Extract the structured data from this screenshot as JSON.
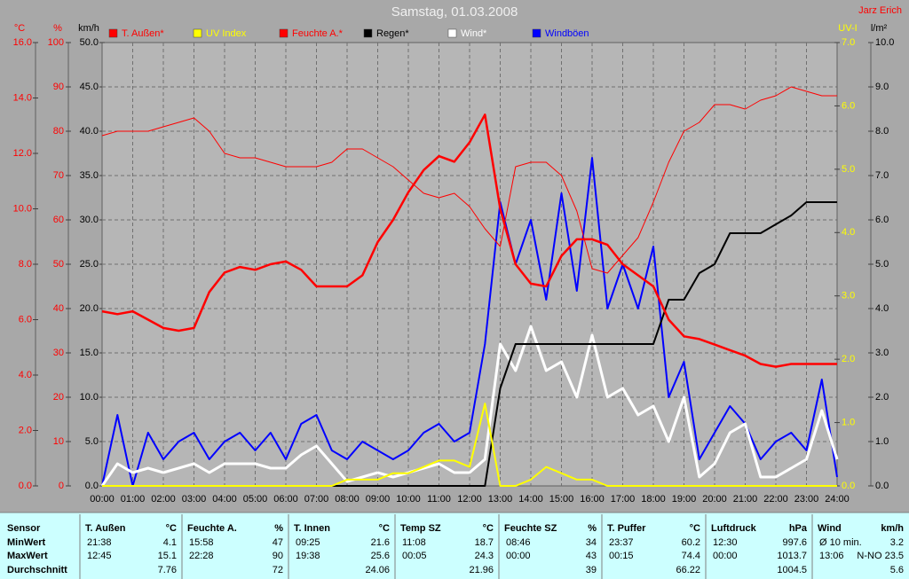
{
  "chart_data": {
    "type": "line",
    "title": "Samstag, 01.03.2008",
    "author": "Jarz Erich",
    "grid": true,
    "x": [
      0,
      0.5,
      1,
      1.5,
      2,
      2.5,
      3,
      3.5,
      4,
      4.5,
      5,
      5.5,
      6,
      6.5,
      7,
      7.5,
      8,
      8.5,
      9,
      9.5,
      10,
      10.5,
      11,
      11.5,
      12,
      12.5,
      13,
      13.5,
      14,
      14.5,
      15,
      15.5,
      16,
      16.5,
      17,
      17.5,
      18,
      18.5,
      19,
      19.5,
      20,
      20.5,
      21,
      21.5,
      22,
      22.5,
      23,
      23.5,
      24
    ],
    "xlim": [
      0,
      24
    ],
    "xticks": [
      {
        "value": 0,
        "label": "00:00"
      },
      {
        "value": 1,
        "label": "01:00"
      },
      {
        "value": 2,
        "label": "02:00"
      },
      {
        "value": 3,
        "label": "03:00"
      },
      {
        "value": 4,
        "label": "04:00"
      },
      {
        "value": 5,
        "label": "05:00"
      },
      {
        "value": 6,
        "label": "06:00"
      },
      {
        "value": 7,
        "label": "07:00"
      },
      {
        "value": 8,
        "label": "08:00"
      },
      {
        "value": 9,
        "label": "09:00"
      },
      {
        "value": 10,
        "label": "10:00"
      },
      {
        "value": 11,
        "label": "11:00"
      },
      {
        "value": 12,
        "label": "12:00"
      },
      {
        "value": 13,
        "label": "13:00"
      },
      {
        "value": 14,
        "label": "14:00"
      },
      {
        "value": 15,
        "label": "15:00"
      },
      {
        "value": 16,
        "label": "16:00"
      },
      {
        "value": 17,
        "label": "17:00"
      },
      {
        "value": 18,
        "label": "18:00"
      },
      {
        "value": 19,
        "label": "19:00"
      },
      {
        "value": 20,
        "label": "20:00"
      },
      {
        "value": 21,
        "label": "21:00"
      },
      {
        "value": 22,
        "label": "22:00"
      },
      {
        "value": 23,
        "label": "23:00"
      },
      {
        "value": 24,
        "label": "24:00"
      }
    ],
    "axes": [
      {
        "label": "°C",
        "color": "#ff0000",
        "ylim": [
          0,
          16
        ],
        "yticks": [
          {
            "value": 0,
            "label": "0.0"
          },
          {
            "value": 2,
            "label": "2.0"
          },
          {
            "value": 4,
            "label": "4.0"
          },
          {
            "value": 6,
            "label": "6.0"
          },
          {
            "value": 8,
            "label": "8.0"
          },
          {
            "value": 10,
            "label": "10.0"
          },
          {
            "value": 12,
            "label": "12.0"
          },
          {
            "value": 14,
            "label": "14.0"
          },
          {
            "value": 16,
            "label": "16.0"
          }
        ]
      },
      {
        "label": "%",
        "color": "#ff0000",
        "ylim": [
          0,
          100
        ],
        "yticks": [
          0,
          10,
          20,
          30,
          40,
          50,
          60,
          70,
          80,
          90,
          100
        ]
      },
      {
        "label": "km/h",
        "color": "#000000",
        "ylim": [
          0,
          50
        ],
        "yticks": [
          {
            "value": 0,
            "label": "0.0"
          },
          {
            "value": 5,
            "label": "5.0"
          },
          {
            "value": 10,
            "label": "10.0"
          },
          {
            "value": 15,
            "label": "15.0"
          },
          {
            "value": 20,
            "label": "20.0"
          },
          {
            "value": 25,
            "label": "25.0"
          },
          {
            "value": 30,
            "label": "30.0"
          },
          {
            "value": 35,
            "label": "35.0"
          },
          {
            "value": 40,
            "label": "40.0"
          },
          {
            "value": 45,
            "label": "45.0"
          },
          {
            "value": 50,
            "label": "50.0"
          }
        ]
      },
      {
        "label": "UV-I",
        "color": "#ffff00",
        "ylim": [
          0,
          7
        ],
        "yticks": [
          {
            "value": 0,
            "label": "0.0"
          },
          {
            "value": 1,
            "label": "1.0"
          },
          {
            "value": 2,
            "label": "2.0"
          },
          {
            "value": 3,
            "label": "3.0"
          },
          {
            "value": 4,
            "label": "4.0"
          },
          {
            "value": 5,
            "label": "5.0"
          },
          {
            "value": 6,
            "label": "6.0"
          },
          {
            "value": 7,
            "label": "7.0"
          }
        ]
      },
      {
        "label": "l/m²",
        "color": "#000000",
        "ylim": [
          0,
          10
        ],
        "yticks": [
          {
            "value": 0,
            "label": "0.0"
          },
          {
            "value": 1,
            "label": "1.0"
          },
          {
            "value": 2,
            "label": "2.0"
          },
          {
            "value": 3,
            "label": "3.0"
          },
          {
            "value": 4,
            "label": "4.0"
          },
          {
            "value": 5,
            "label": "5.0"
          },
          {
            "value": 6,
            "label": "6.0"
          },
          {
            "value": 7,
            "label": "7.0"
          },
          {
            "value": 8,
            "label": "8.0"
          },
          {
            "value": 9,
            "label": "9.0"
          },
          {
            "value": 10,
            "label": "10.0"
          }
        ]
      }
    ],
    "series": [
      {
        "name": "T. Außen*",
        "color": "#ff0000",
        "axis": 0,
        "values": [
          6.3,
          6.2,
          6.3,
          6.0,
          5.7,
          5.6,
          5.7,
          7.0,
          7.7,
          7.9,
          7.8,
          8.0,
          8.1,
          7.8,
          7.2,
          7.2,
          7.2,
          7.6,
          8.8,
          9.6,
          10.6,
          11.4,
          11.9,
          11.7,
          12.4,
          13.4,
          10.0,
          8.0,
          7.3,
          7.2,
          8.3,
          8.9,
          8.9,
          8.7,
          8.0,
          7.6,
          7.2,
          6.0,
          5.4,
          5.3,
          5.1,
          4.9,
          4.7,
          4.4,
          4.3,
          4.4,
          4.4,
          4.4,
          4.4
        ]
      },
      {
        "name": "UV Index",
        "color": "#ffff00",
        "axis": 3,
        "values": [
          0,
          0,
          0,
          0,
          0,
          0,
          0,
          0,
          0,
          0,
          0,
          0,
          0,
          0,
          0,
          0,
          0.1,
          0.1,
          0.1,
          0.2,
          0.2,
          0.3,
          0.4,
          0.4,
          0.3,
          1.3,
          0,
          0,
          0.1,
          0.3,
          0.2,
          0.1,
          0.1,
          0,
          0,
          0,
          0,
          0,
          0,
          0,
          0,
          0,
          0,
          0,
          0,
          0,
          0,
          0,
          0
        ]
      },
      {
        "name": "Feuchte A.*",
        "color": "#ff0000",
        "axis": 1,
        "values": [
          79,
          80,
          80,
          80,
          81,
          82,
          83,
          80,
          75,
          74,
          74,
          73,
          72,
          72,
          72,
          73,
          76,
          76,
          74,
          72,
          69,
          66,
          65,
          66,
          63,
          58,
          54,
          72,
          73,
          73,
          70,
          62,
          49,
          48,
          52,
          56,
          64,
          73,
          80,
          82,
          86,
          86,
          85,
          87,
          88,
          90,
          89,
          88,
          88
        ]
      },
      {
        "name": "Regen*",
        "color": "#000000",
        "axis": 4,
        "values": [
          0,
          0,
          0,
          0,
          0,
          0,
          0,
          0,
          0,
          0,
          0,
          0,
          0,
          0,
          0,
          0,
          0,
          0,
          0,
          0,
          0,
          0,
          0,
          0,
          0,
          0,
          2.2,
          3.2,
          3.2,
          3.2,
          3.2,
          3.2,
          3.2,
          3.2,
          3.2,
          3.2,
          3.2,
          4.2,
          4.2,
          4.8,
          5.0,
          5.7,
          5.7,
          5.7,
          5.9,
          6.1,
          6.4,
          6.4,
          6.4
        ]
      },
      {
        "name": "Wind*",
        "color": "#ffffff",
        "axis": 2,
        "values": [
          0,
          2.5,
          1.5,
          2,
          1.5,
          2,
          2.5,
          1.5,
          2.5,
          2.5,
          2.5,
          2,
          2,
          3.5,
          4.5,
          2.5,
          0.5,
          1,
          1.5,
          1,
          1.5,
          2,
          2.5,
          1.5,
          1.5,
          3,
          16,
          13,
          18,
          13,
          14,
          10,
          17,
          10,
          11,
          8,
          9,
          5,
          10,
          1,
          2.5,
          6,
          7,
          1,
          1,
          2,
          3,
          8.5,
          3
        ]
      },
      {
        "name": "Windböen",
        "color": "#0000ff",
        "axis": 2,
        "values": [
          0,
          8,
          0,
          6,
          3,
          5,
          6,
          3,
          5,
          6,
          4,
          6,
          3,
          7,
          8,
          4,
          3,
          5,
          4,
          3,
          4,
          6,
          7,
          5,
          6,
          16,
          32,
          25,
          30,
          21,
          33,
          22,
          37,
          20,
          25,
          20,
          27,
          10,
          14,
          3,
          6,
          9,
          7,
          3,
          5,
          6,
          4,
          12,
          1
        ]
      }
    ]
  },
  "table": {
    "row_labels": [
      "Sensor",
      "MinWert",
      "MaxWert",
      "Durchschnitt"
    ],
    "columns": [
      {
        "name": "T. Außen",
        "unit": "°C",
        "rows": [
          [
            "21:38",
            "4.1"
          ],
          [
            "12:45",
            "15.1"
          ],
          [
            null,
            "7.76"
          ]
        ]
      },
      {
        "name": "Feuchte A.",
        "unit": "%",
        "rows": [
          [
            "15:58",
            "47"
          ],
          [
            "22:28",
            "90"
          ],
          [
            null,
            "72"
          ]
        ]
      },
      {
        "name": "T. Innen",
        "unit": "°C",
        "rows": [
          [
            "09:25",
            "21.6"
          ],
          [
            "19:38",
            "25.6"
          ],
          [
            null,
            "24.06"
          ]
        ]
      },
      {
        "name": "Temp SZ",
        "unit": "°C",
        "rows": [
          [
            "11:08",
            "18.7"
          ],
          [
            "00:05",
            "24.3"
          ],
          [
            null,
            "21.96"
          ]
        ]
      },
      {
        "name": "Feuchte SZ",
        "unit": "%",
        "rows": [
          [
            "08:46",
            "34"
          ],
          [
            "00:00",
            "43"
          ],
          [
            null,
            "39"
          ]
        ]
      },
      {
        "name": "T. Puffer",
        "unit": "°C",
        "rows": [
          [
            "23:37",
            "60.2"
          ],
          [
            "00:15",
            "74.4"
          ],
          [
            null,
            "66.22"
          ]
        ]
      },
      {
        "name": "Luftdruck",
        "unit": "hPa",
        "rows": [
          [
            "12:30",
            "997.6"
          ],
          [
            "00:00",
            "1013.7"
          ],
          [
            null,
            "1004.5"
          ]
        ]
      },
      {
        "name": "Wind",
        "unit": "km/h",
        "rows": [
          [
            "Ø 10 min.",
            "3.2"
          ],
          [
            "13:06",
            "N-NO 23.5"
          ],
          [
            null,
            "5.6"
          ]
        ]
      }
    ]
  }
}
